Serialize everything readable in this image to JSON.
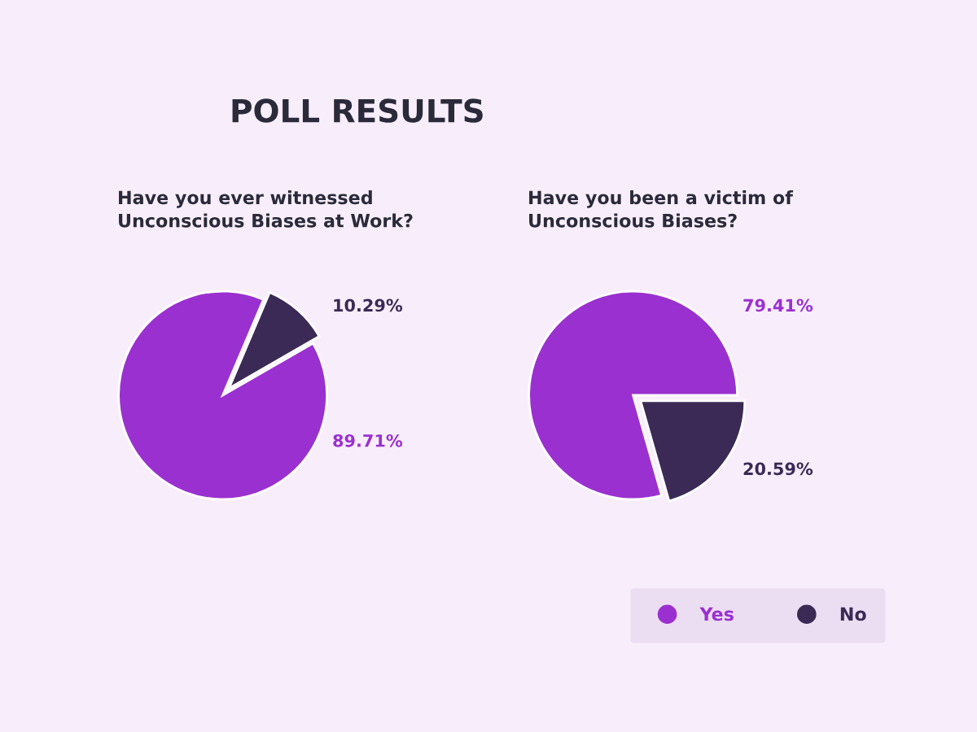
{
  "chart_data": [
    {
      "type": "pie",
      "title": "Have you ever witnessed\nUnconscious Biases at Work?",
      "annotations": [
        "POLL RESULTS"
      ],
      "categories": [
        "Yes",
        "No"
      ],
      "values": [
        89.71,
        10.29
      ],
      "value_labels": [
        "89.71%",
        "10.29%"
      ],
      "colors": [
        "#9b30d0",
        "#3b2a55"
      ],
      "legend": "bottom right"
    },
    {
      "type": "pie",
      "title": "Have you been a victim of\nUnconscious Biases?",
      "categories": [
        null,
        null
      ],
      "values": [
        79.41,
        20.59
      ],
      "value_labels": [
        "79.41%",
        "20.59%"
      ],
      "colors": [
        "#9b30d0",
        "#3b2a55"
      ]
    }
  ]
}
